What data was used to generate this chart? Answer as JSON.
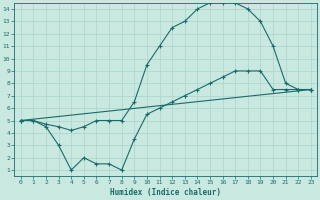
{
  "xlabel": "Humidex (Indice chaleur)",
  "xlim": [
    -0.5,
    23.5
  ],
  "ylim": [
    0.5,
    14.5
  ],
  "xticks": [
    0,
    1,
    2,
    3,
    4,
    5,
    6,
    7,
    8,
    9,
    10,
    11,
    12,
    13,
    14,
    15,
    16,
    17,
    18,
    19,
    20,
    21,
    22,
    23
  ],
  "yticks": [
    1,
    2,
    3,
    4,
    5,
    6,
    7,
    8,
    9,
    10,
    11,
    12,
    13,
    14
  ],
  "bg_color": "#c8e8e0",
  "line_color": "#1a6b6b",
  "grid_color": "#b0d8d0",
  "line1_x": [
    0,
    1,
    2,
    3,
    4,
    5,
    6,
    7,
    8,
    9,
    10,
    11,
    12,
    13,
    14,
    15,
    16,
    17,
    18,
    19,
    20,
    21,
    22,
    23
  ],
  "line1_y": [
    5.0,
    5.0,
    4.7,
    4.5,
    4.2,
    4.5,
    5.0,
    5.0,
    5.0,
    6.5,
    9.5,
    11.0,
    12.5,
    13.0,
    14.0,
    14.5,
    14.5,
    14.5,
    14.0,
    13.0,
    11.0,
    8.0,
    7.5,
    7.5
  ],
  "line2_x": [
    0,
    1,
    2,
    3,
    4,
    5,
    6,
    7,
    8,
    9,
    10,
    11,
    12,
    13,
    14,
    15,
    16,
    17,
    18,
    19,
    20,
    21,
    22,
    23
  ],
  "line2_y": [
    5.0,
    5.0,
    4.5,
    3.0,
    1.0,
    2.0,
    1.5,
    1.5,
    1.0,
    3.5,
    5.5,
    6.0,
    6.5,
    7.0,
    7.5,
    8.0,
    8.5,
    9.0,
    9.0,
    9.0,
    7.5,
    7.5,
    7.5,
    7.5
  ],
  "line3_x": [
    0,
    23
  ],
  "line3_y": [
    5.0,
    7.5
  ]
}
